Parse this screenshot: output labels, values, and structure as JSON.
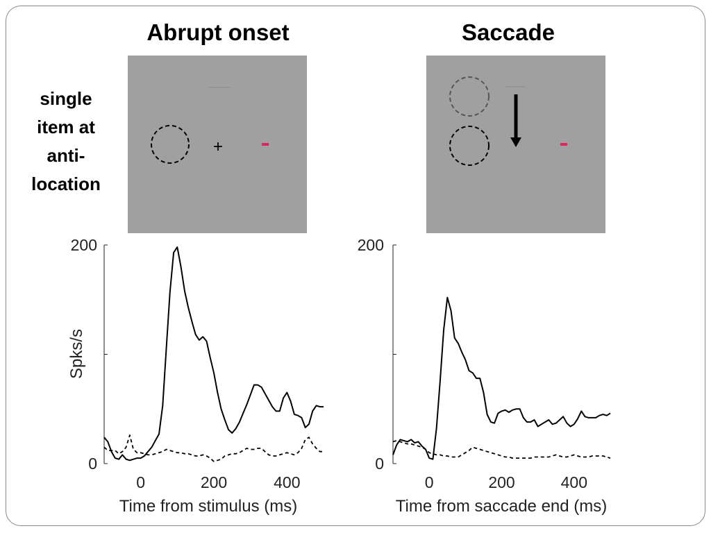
{
  "titles": {
    "left": "Abrupt onset",
    "right": "Saccade"
  },
  "row_label": [
    "single",
    "item at",
    "anti-",
    "location"
  ],
  "stimulus": {
    "left": {
      "fixation_symbol": "+"
    },
    "right": {}
  },
  "colors": {
    "probe": "#e0245e",
    "panel_bg": "#a0a0a0",
    "ring_dark": "#000000",
    "ring_faded": "#555555"
  },
  "chart_data": [
    {
      "type": "line",
      "title": "Abrupt onset",
      "xlabel": "Time from stimulus (ms)",
      "ylabel": "Spks/s",
      "xlim": [
        -100,
        500
      ],
      "ylim": [
        0,
        200
      ],
      "xticks": [
        0,
        200,
        400
      ],
      "yticks": [
        0,
        100,
        200
      ],
      "ytick_labels": [
        "0",
        "",
        "200"
      ],
      "series": [
        {
          "style": "solid",
          "x": [
            -100,
            -90,
            -80,
            -70,
            -60,
            -50,
            -40,
            -30,
            -20,
            -10,
            0,
            10,
            20,
            30,
            40,
            50,
            60,
            70,
            80,
            90,
            100,
            110,
            120,
            130,
            140,
            150,
            160,
            170,
            180,
            190,
            200,
            210,
            220,
            230,
            240,
            250,
            260,
            270,
            280,
            290,
            300,
            310,
            320,
            330,
            340,
            350,
            360,
            370,
            380,
            390,
            400,
            410,
            420,
            430,
            440,
            450,
            460,
            470,
            480,
            490,
            500
          ],
          "y": [
            24,
            20,
            11,
            5,
            4,
            8,
            4,
            3,
            4,
            5,
            5,
            7,
            11,
            15,
            21,
            27,
            53,
            105,
            157,
            193,
            198,
            180,
            158,
            143,
            130,
            118,
            113,
            116,
            112,
            97,
            83,
            65,
            50,
            40,
            31,
            28,
            32,
            38,
            46,
            54,
            63,
            72,
            72,
            70,
            64,
            58,
            52,
            48,
            48,
            60,
            65,
            57,
            45,
            44,
            42,
            33,
            36,
            48,
            53,
            52,
            52
          ]
        },
        {
          "style": "dashed",
          "x": [
            -100,
            -90,
            -80,
            -70,
            -60,
            -50,
            -40,
            -30,
            -20,
            -10,
            0,
            10,
            20,
            30,
            40,
            50,
            60,
            70,
            80,
            90,
            100,
            110,
            120,
            130,
            140,
            150,
            160,
            170,
            180,
            190,
            200,
            210,
            220,
            230,
            240,
            250,
            260,
            270,
            280,
            290,
            300,
            310,
            320,
            330,
            340,
            350,
            360,
            370,
            380,
            390,
            400,
            410,
            420,
            430,
            440,
            450,
            460,
            470,
            480,
            490,
            500
          ],
          "y": [
            15,
            12,
            12,
            12,
            9,
            11,
            15,
            26,
            13,
            10,
            10,
            9,
            8,
            8,
            9,
            10,
            11,
            13,
            12,
            11,
            10,
            10,
            9,
            9,
            8,
            7,
            7,
            8,
            7,
            5,
            2,
            3,
            4,
            7,
            8,
            9,
            9,
            10,
            12,
            14,
            13,
            13,
            14,
            14,
            11,
            8,
            7,
            7,
            8,
            9,
            10,
            9,
            8,
            10,
            14,
            22,
            24,
            18,
            14,
            11,
            11
          ]
        }
      ]
    },
    {
      "type": "line",
      "title": "Saccade",
      "xlabel": "Time from saccade end (ms)",
      "ylabel": "",
      "xlim": [
        -100,
        500
      ],
      "ylim": [
        0,
        200
      ],
      "xticks": [
        0,
        200,
        400
      ],
      "yticks": [
        0,
        100,
        200
      ],
      "ytick_labels": [
        "0",
        "",
        "200"
      ],
      "series": [
        {
          "style": "solid",
          "x": [
            -100,
            -90,
            -80,
            -70,
            -60,
            -50,
            -40,
            -30,
            -20,
            -10,
            0,
            10,
            20,
            30,
            40,
            50,
            60,
            70,
            80,
            90,
            100,
            110,
            120,
            130,
            140,
            150,
            160,
            170,
            180,
            190,
            200,
            210,
            220,
            230,
            240,
            250,
            260,
            270,
            280,
            290,
            300,
            310,
            320,
            330,
            340,
            350,
            360,
            370,
            380,
            390,
            400,
            410,
            420,
            430,
            440,
            450,
            460,
            470,
            480,
            490,
            500
          ],
          "y": [
            8,
            17,
            22,
            21,
            20,
            22,
            19,
            20,
            16,
            13,
            5,
            4,
            32,
            75,
            122,
            152,
            140,
            115,
            110,
            102,
            95,
            85,
            83,
            78,
            78,
            65,
            45,
            38,
            37,
            46,
            48,
            49,
            47,
            49,
            50,
            50,
            42,
            38,
            38,
            40,
            34,
            36,
            38,
            40,
            36,
            37,
            40,
            43,
            37,
            34,
            36,
            41,
            48,
            43,
            42,
            42,
            42,
            44,
            45,
            44,
            46
          ]
        },
        {
          "style": "dashed",
          "x": [
            -100,
            -90,
            -80,
            -70,
            -60,
            -50,
            -40,
            -30,
            -20,
            -10,
            0,
            10,
            20,
            30,
            40,
            50,
            60,
            70,
            80,
            90,
            100,
            110,
            120,
            130,
            140,
            150,
            160,
            170,
            180,
            190,
            200,
            210,
            220,
            230,
            240,
            250,
            260,
            270,
            280,
            290,
            300,
            310,
            320,
            330,
            340,
            350,
            360,
            370,
            380,
            390,
            400,
            410,
            420,
            430,
            440,
            450,
            460,
            470,
            480,
            490,
            500
          ],
          "y": [
            20,
            21,
            20,
            19,
            18,
            18,
            17,
            16,
            15,
            13,
            10,
            9,
            8,
            8,
            7,
            7,
            6,
            6,
            6,
            8,
            10,
            12,
            15,
            14,
            13,
            12,
            11,
            10,
            9,
            8,
            7,
            6,
            6,
            5,
            5,
            5,
            5,
            5,
            5,
            6,
            6,
            6,
            6,
            6,
            7,
            8,
            7,
            6,
            6,
            7,
            8,
            7,
            6,
            6,
            6,
            7,
            7,
            7,
            7,
            6,
            5
          ]
        }
      ]
    }
  ]
}
